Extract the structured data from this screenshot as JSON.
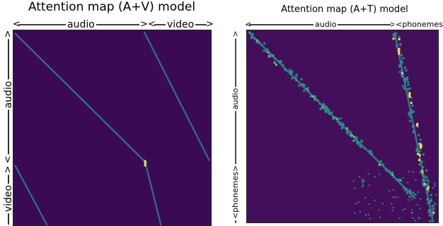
{
  "chart_data": [
    {
      "type": "heatmap",
      "title": "Attention map (A+V) model",
      "x_axis_segments": [
        "audio",
        "video"
      ],
      "y_axis_segments": [
        "audio",
        "video"
      ],
      "colors": {
        "background": "#3b0a57",
        "mid": "#2a8c8a",
        "high": "#f5e34a"
      }
    },
    {
      "type": "heatmap",
      "title": "Attention map (A+T) model",
      "x_axis_segments": [
        "audio",
        "<phonemes>"
      ],
      "y_axis_segments": [
        "audio",
        "<phonemes>"
      ],
      "colors": {
        "background": "#440f5a",
        "mid": "#2a8c8a",
        "high": "#f5e34a"
      }
    }
  ],
  "left": {
    "title": "Attention map (A+V) model",
    "x_label_audio": "audio",
    "x_label_video": "video",
    "y_label_audio": "audio",
    "y_label_video": "video"
  },
  "right": {
    "title": "Attention map (A+T) model",
    "x_label_audio": "audio",
    "x_label_phonemes": "<phonemes>",
    "y_label_audio": "audio",
    "y_label_phonemes": "<phonemes>"
  }
}
